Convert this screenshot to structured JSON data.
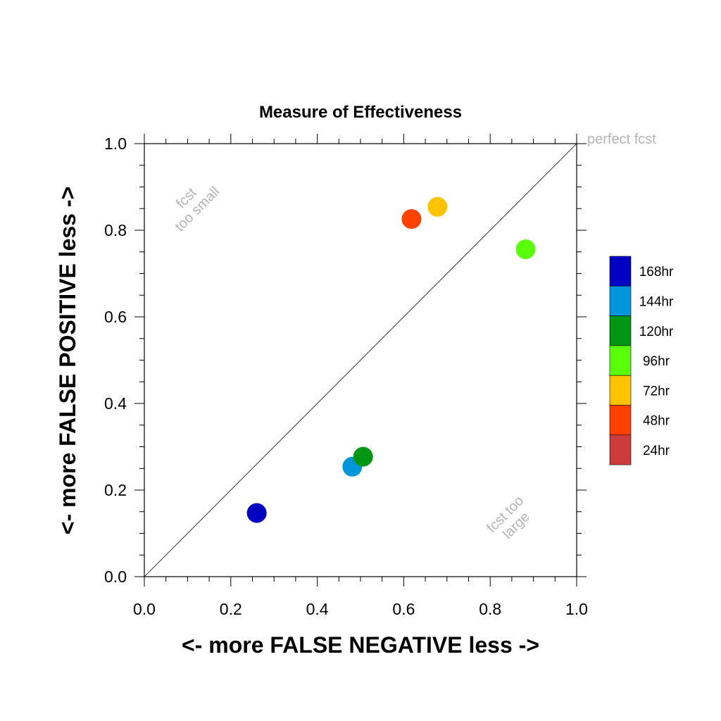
{
  "chart_data": {
    "type": "scatter",
    "title": "Measure of Effectiveness",
    "xlabel": "<- more   FALSE NEGATIVE   less ->",
    "ylabel": "<- more   FALSE POSITIVE   less ->",
    "xlim": [
      0.0,
      1.0
    ],
    "ylim": [
      0.0,
      1.0
    ],
    "x_ticks": [
      "0.0",
      "0.2",
      "0.4",
      "0.6",
      "0.8",
      "1.0"
    ],
    "y_ticks": [
      "0.0",
      "0.2",
      "0.4",
      "0.6",
      "0.8",
      "1.0"
    ],
    "grid": false,
    "diagonal_line": true,
    "annotations": {
      "perfect": "perfect fcst",
      "too_small": [
        "fcst",
        "too small"
      ],
      "too_large": [
        "fcst too",
        "large"
      ]
    },
    "legend_position": "right",
    "legend": [
      {
        "label": "168hr",
        "color": "#0000c3"
      },
      {
        "label": "144hr",
        "color": "#0096dc"
      },
      {
        "label": "120hr",
        "color": "#009614"
      },
      {
        "label": "96hr",
        "color": "#5aff0a"
      },
      {
        "label": "72hr",
        "color": "#ffc300"
      },
      {
        "label": "48hr",
        "color": "#ff4100"
      },
      {
        "label": "24hr",
        "color": "#cd3c3c"
      }
    ],
    "points": [
      {
        "series": "168hr",
        "x": 0.26,
        "y": 0.147,
        "color": "#0000c3"
      },
      {
        "series": "144hr",
        "x": 0.481,
        "y": 0.254,
        "color": "#0096dc"
      },
      {
        "series": "120hr",
        "x": 0.506,
        "y": 0.277,
        "color": "#009614"
      },
      {
        "series": "96hr",
        "x": 0.882,
        "y": 0.756,
        "color": "#5aff0a"
      },
      {
        "series": "72hr",
        "x": 0.678,
        "y": 0.854,
        "color": "#ffc300"
      },
      {
        "series": "48hr",
        "x": 0.618,
        "y": 0.826,
        "color": "#ff4100"
      }
    ]
  }
}
